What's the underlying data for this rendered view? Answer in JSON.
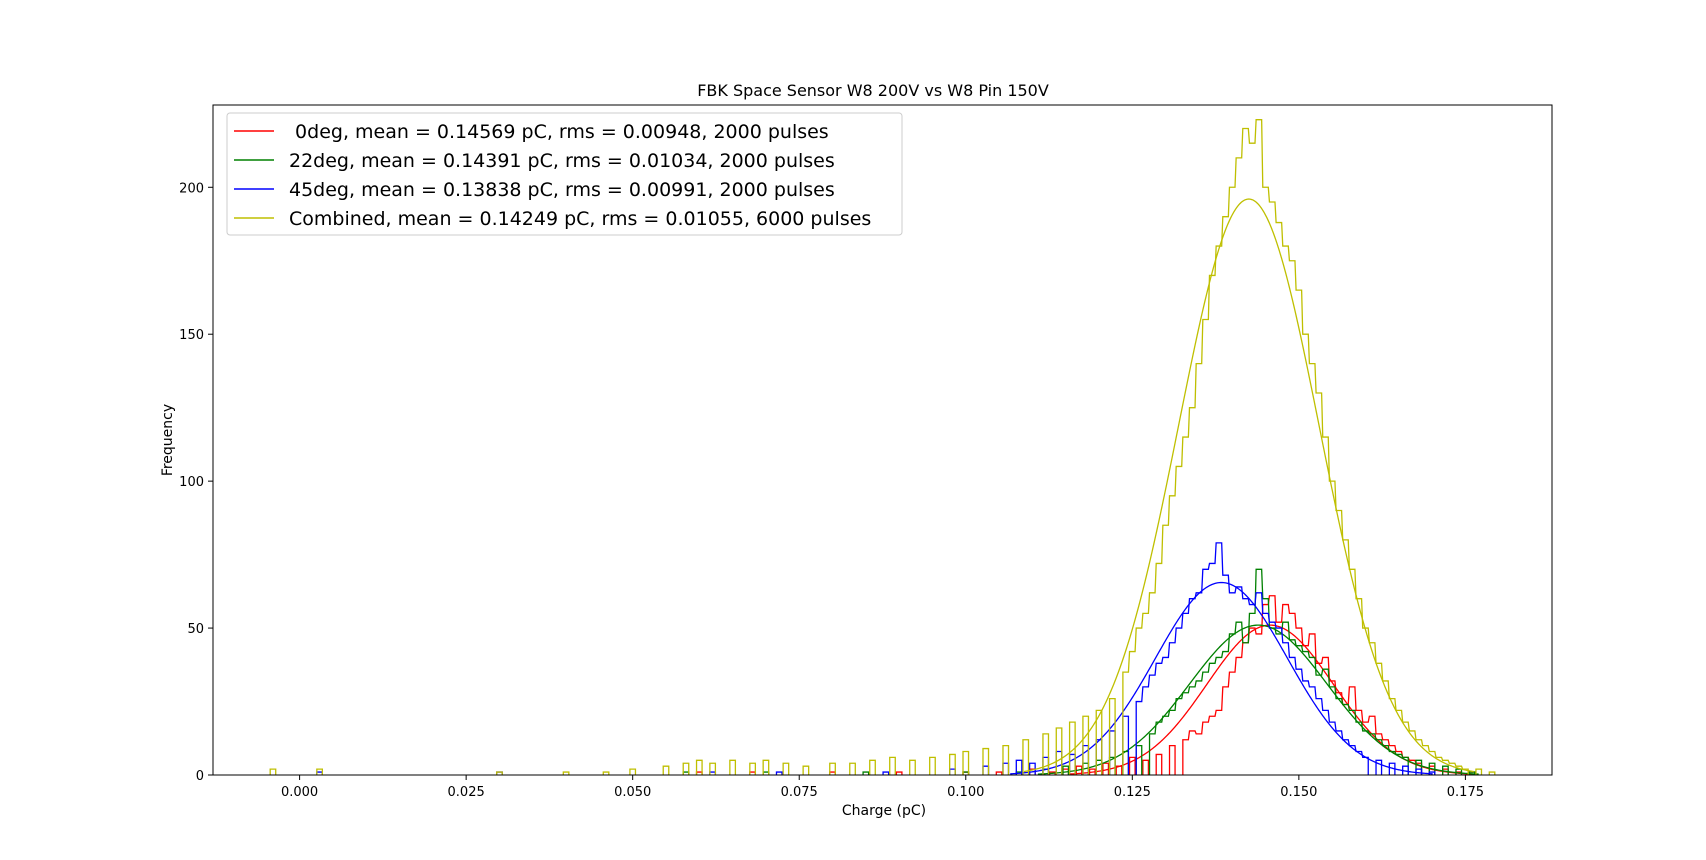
{
  "chart_data": {
    "type": "line",
    "title": "FBK Space Sensor W8 200V vs W8 Pin 150V",
    "xlabel": "Charge (pC)",
    "ylabel": "Frequency",
    "xlim": [
      -0.013,
      0.188
    ],
    "ylim": [
      0,
      228
    ],
    "xticks": [
      0.0,
      0.025,
      0.05,
      0.075,
      0.1,
      0.125,
      0.15,
      0.175
    ],
    "xtick_labels": [
      "0.000",
      "0.025",
      "0.050",
      "0.075",
      "0.100",
      "0.125",
      "0.150",
      "0.175"
    ],
    "yticks": [
      0,
      50,
      100,
      150,
      200
    ],
    "ytick_labels": [
      "0",
      "50",
      "100",
      "150",
      "200"
    ],
    "legend_position": "top-left",
    "grid": false,
    "series": [
      {
        "name": " 0deg, mean = 0.14569 pC, rms = 0.00948, 2000 pulses",
        "color": "#ff0000",
        "fit": {
          "type": "gaussian",
          "amplitude": 51,
          "mean": 0.14569,
          "sigma": 0.00948
        },
        "histogram": {
          "bin_width": 0.00083,
          "bins": [
            [
              0.06,
              1
            ],
            [
              0.068,
              1
            ],
            [
              0.08,
              1
            ],
            [
              0.09,
              1
            ],
            [
              0.1,
              1
            ],
            [
              0.105,
              1
            ],
            [
              0.11,
              2
            ],
            [
              0.113,
              1
            ],
            [
              0.115,
              2
            ],
            [
              0.117,
              3
            ],
            [
              0.119,
              2
            ],
            [
              0.121,
              4
            ],
            [
              0.123,
              3
            ],
            [
              0.125,
              6
            ],
            [
              0.127,
              5
            ],
            [
              0.129,
              7
            ],
            [
              0.131,
              10
            ],
            [
              0.133,
              12
            ],
            [
              0.134,
              15
            ],
            [
              0.135,
              14
            ],
            [
              0.136,
              18
            ],
            [
              0.137,
              20
            ],
            [
              0.138,
              22
            ],
            [
              0.139,
              30
            ],
            [
              0.14,
              35
            ],
            [
              0.141,
              40
            ],
            [
              0.142,
              45
            ],
            [
              0.143,
              50
            ],
            [
              0.144,
              48
            ],
            [
              0.145,
              58
            ],
            [
              0.146,
              61
            ],
            [
              0.147,
              52
            ],
            [
              0.148,
              58
            ],
            [
              0.149,
              55
            ],
            [
              0.15,
              50
            ],
            [
              0.151,
              44
            ],
            [
              0.152,
              48
            ],
            [
              0.153,
              38
            ],
            [
              0.154,
              40
            ],
            [
              0.155,
              32
            ],
            [
              0.156,
              28
            ],
            [
              0.157,
              24
            ],
            [
              0.158,
              30
            ],
            [
              0.159,
              22
            ],
            [
              0.16,
              18
            ],
            [
              0.161,
              20
            ],
            [
              0.162,
              14
            ],
            [
              0.163,
              12
            ],
            [
              0.164,
              10
            ],
            [
              0.165,
              8
            ],
            [
              0.166,
              6
            ],
            [
              0.167,
              5
            ],
            [
              0.168,
              4
            ],
            [
              0.17,
              3
            ],
            [
              0.172,
              2
            ],
            [
              0.174,
              1
            ],
            [
              0.176,
              1
            ]
          ]
        }
      },
      {
        "name": "22deg, mean = 0.14391 pC, rms = 0.01034, 2000 pulses",
        "color": "#008000",
        "fit": {
          "type": "gaussian",
          "amplitude": 51,
          "mean": 0.14391,
          "sigma": 0.01034
        },
        "histogram": {
          "bin_width": 0.00083,
          "bins": [
            [
              0.058,
              1
            ],
            [
              0.07,
              1
            ],
            [
              0.085,
              1
            ],
            [
              0.1,
              1
            ],
            [
              0.108,
              1
            ],
            [
              0.112,
              2
            ],
            [
              0.115,
              3
            ],
            [
              0.118,
              4
            ],
            [
              0.12,
              5
            ],
            [
              0.122,
              6
            ],
            [
              0.124,
              8
            ],
            [
              0.126,
              10
            ],
            [
              0.128,
              14
            ],
            [
              0.129,
              18
            ],
            [
              0.13,
              20
            ],
            [
              0.131,
              22
            ],
            [
              0.132,
              26
            ],
            [
              0.133,
              28
            ],
            [
              0.134,
              30
            ],
            [
              0.135,
              32
            ],
            [
              0.136,
              35
            ],
            [
              0.137,
              38
            ],
            [
              0.138,
              40
            ],
            [
              0.139,
              42
            ],
            [
              0.14,
              48
            ],
            [
              0.141,
              52
            ],
            [
              0.142,
              45
            ],
            [
              0.143,
              55
            ],
            [
              0.144,
              70
            ],
            [
              0.145,
              60
            ],
            [
              0.146,
              50
            ],
            [
              0.147,
              48
            ],
            [
              0.148,
              52
            ],
            [
              0.149,
              46
            ],
            [
              0.15,
              44
            ],
            [
              0.151,
              42
            ],
            [
              0.152,
              40
            ],
            [
              0.153,
              34
            ],
            [
              0.154,
              36
            ],
            [
              0.155,
              30
            ],
            [
              0.156,
              26
            ],
            [
              0.157,
              24
            ],
            [
              0.158,
              22
            ],
            [
              0.159,
              18
            ],
            [
              0.16,
              15
            ],
            [
              0.161,
              14
            ],
            [
              0.162,
              12
            ],
            [
              0.163,
              10
            ],
            [
              0.164,
              8
            ],
            [
              0.165,
              7
            ],
            [
              0.166,
              6
            ],
            [
              0.168,
              5
            ],
            [
              0.17,
              4
            ],
            [
              0.172,
              3
            ],
            [
              0.174,
              2
            ],
            [
              0.176,
              1
            ]
          ]
        }
      },
      {
        "name": "45deg, mean = 0.13838 pC, rms = 0.00991, 2000 pulses",
        "color": "#0000ff",
        "fit": {
          "type": "gaussian",
          "amplitude": 65.5,
          "mean": 0.13838,
          "sigma": 0.00991
        },
        "histogram": {
          "bin_width": 0.00083,
          "bins": [
            [
              0.003,
              1
            ],
            [
              0.03,
              1
            ],
            [
              0.062,
              1
            ],
            [
              0.072,
              1
            ],
            [
              0.088,
              1
            ],
            [
              0.098,
              2
            ],
            [
              0.103,
              3
            ],
            [
              0.106,
              4
            ],
            [
              0.108,
              5
            ],
            [
              0.11,
              4
            ],
            [
              0.112,
              6
            ],
            [
              0.114,
              8
            ],
            [
              0.116,
              7
            ],
            [
              0.118,
              10
            ],
            [
              0.12,
              12
            ],
            [
              0.122,
              15
            ],
            [
              0.124,
              20
            ],
            [
              0.126,
              25
            ],
            [
              0.127,
              30
            ],
            [
              0.128,
              34
            ],
            [
              0.129,
              38
            ],
            [
              0.13,
              40
            ],
            [
              0.131,
              45
            ],
            [
              0.132,
              50
            ],
            [
              0.133,
              55
            ],
            [
              0.134,
              60
            ],
            [
              0.135,
              62
            ],
            [
              0.136,
              70
            ],
            [
              0.137,
              72
            ],
            [
              0.138,
              79
            ],
            [
              0.139,
              68
            ],
            [
              0.14,
              62
            ],
            [
              0.141,
              64
            ],
            [
              0.142,
              60
            ],
            [
              0.143,
              58
            ],
            [
              0.144,
              62
            ],
            [
              0.145,
              55
            ],
            [
              0.146,
              52
            ],
            [
              0.147,
              50
            ],
            [
              0.148,
              45
            ],
            [
              0.149,
              40
            ],
            [
              0.15,
              36
            ],
            [
              0.151,
              32
            ],
            [
              0.152,
              30
            ],
            [
              0.153,
              26
            ],
            [
              0.154,
              22
            ],
            [
              0.155,
              18
            ],
            [
              0.156,
              15
            ],
            [
              0.157,
              12
            ],
            [
              0.158,
              10
            ],
            [
              0.159,
              8
            ],
            [
              0.16,
              6
            ],
            [
              0.162,
              5
            ],
            [
              0.164,
              4
            ],
            [
              0.166,
              3
            ],
            [
              0.168,
              2
            ],
            [
              0.17,
              1
            ]
          ]
        }
      },
      {
        "name": "Combined, mean = 0.14249 pC, rms = 0.01055, 6000 pulses",
        "color": "#bfbf00",
        "fit": {
          "type": "gaussian",
          "amplitude": 196,
          "mean": 0.14249,
          "sigma": 0.01055
        },
        "histogram": {
          "bin_width": 0.00083,
          "bins": [
            [
              -0.004,
              2
            ],
            [
              0.003,
              2
            ],
            [
              0.03,
              1
            ],
            [
              0.04,
              1
            ],
            [
              0.046,
              1
            ],
            [
              0.05,
              2
            ],
            [
              0.055,
              3
            ],
            [
              0.058,
              4
            ],
            [
              0.06,
              5
            ],
            [
              0.062,
              4
            ],
            [
              0.065,
              5
            ],
            [
              0.068,
              4
            ],
            [
              0.07,
              5
            ],
            [
              0.073,
              4
            ],
            [
              0.076,
              3
            ],
            [
              0.08,
              4
            ],
            [
              0.083,
              4
            ],
            [
              0.086,
              5
            ],
            [
              0.089,
              6
            ],
            [
              0.092,
              5
            ],
            [
              0.095,
              6
            ],
            [
              0.098,
              7
            ],
            [
              0.1,
              8
            ],
            [
              0.103,
              9
            ],
            [
              0.106,
              10
            ],
            [
              0.109,
              12
            ],
            [
              0.112,
              14
            ],
            [
              0.114,
              16
            ],
            [
              0.116,
              18
            ],
            [
              0.118,
              20
            ],
            [
              0.12,
              22
            ],
            [
              0.122,
              26
            ],
            [
              0.124,
              35
            ],
            [
              0.125,
              42
            ],
            [
              0.126,
              50
            ],
            [
              0.127,
              55
            ],
            [
              0.128,
              62
            ],
            [
              0.129,
              72
            ],
            [
              0.13,
              85
            ],
            [
              0.131,
              95
            ],
            [
              0.132,
              105
            ],
            [
              0.133,
              115
            ],
            [
              0.134,
              125
            ],
            [
              0.135,
              140
            ],
            [
              0.136,
              155
            ],
            [
              0.137,
              170
            ],
            [
              0.138,
              180
            ],
            [
              0.139,
              190
            ],
            [
              0.14,
              200
            ],
            [
              0.141,
              210
            ],
            [
              0.142,
              220
            ],
            [
              0.143,
              215
            ],
            [
              0.144,
              223
            ],
            [
              0.145,
              200
            ],
            [
              0.146,
              195
            ],
            [
              0.147,
              188
            ],
            [
              0.148,
              180
            ],
            [
              0.149,
              175
            ],
            [
              0.15,
              165
            ],
            [
              0.151,
              150
            ],
            [
              0.152,
              140
            ],
            [
              0.153,
              130
            ],
            [
              0.154,
              115
            ],
            [
              0.155,
              100
            ],
            [
              0.156,
              90
            ],
            [
              0.157,
              80
            ],
            [
              0.158,
              70
            ],
            [
              0.159,
              60
            ],
            [
              0.16,
              50
            ],
            [
              0.161,
              45
            ],
            [
              0.162,
              38
            ],
            [
              0.163,
              32
            ],
            [
              0.164,
              26
            ],
            [
              0.165,
              22
            ],
            [
              0.166,
              18
            ],
            [
              0.167,
              15
            ],
            [
              0.168,
              12
            ],
            [
              0.169,
              10
            ],
            [
              0.17,
              8
            ],
            [
              0.171,
              6
            ],
            [
              0.172,
              5
            ],
            [
              0.173,
              4
            ],
            [
              0.174,
              3
            ],
            [
              0.175,
              2
            ],
            [
              0.177,
              2
            ],
            [
              0.179,
              1
            ]
          ]
        }
      }
    ]
  }
}
